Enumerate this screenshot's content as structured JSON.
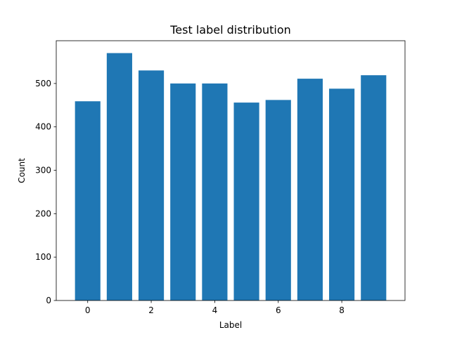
{
  "chart_data": {
    "type": "bar",
    "title": "Test label distribution",
    "xlabel": "Label",
    "ylabel": "Count",
    "categories": [
      0,
      1,
      2,
      3,
      4,
      5,
      6,
      7,
      8,
      9
    ],
    "values": [
      459,
      570,
      530,
      500,
      500,
      456,
      462,
      511,
      488,
      519
    ],
    "xlim": [
      -0.99,
      9.99
    ],
    "ylim": [
      0,
      598.5
    ],
    "xticks": [
      0,
      2,
      4,
      6,
      8
    ],
    "yticks": [
      0,
      100,
      200,
      300,
      400,
      500
    ],
    "bar_color": "#1f77b4",
    "grid": false,
    "legend": "none"
  }
}
